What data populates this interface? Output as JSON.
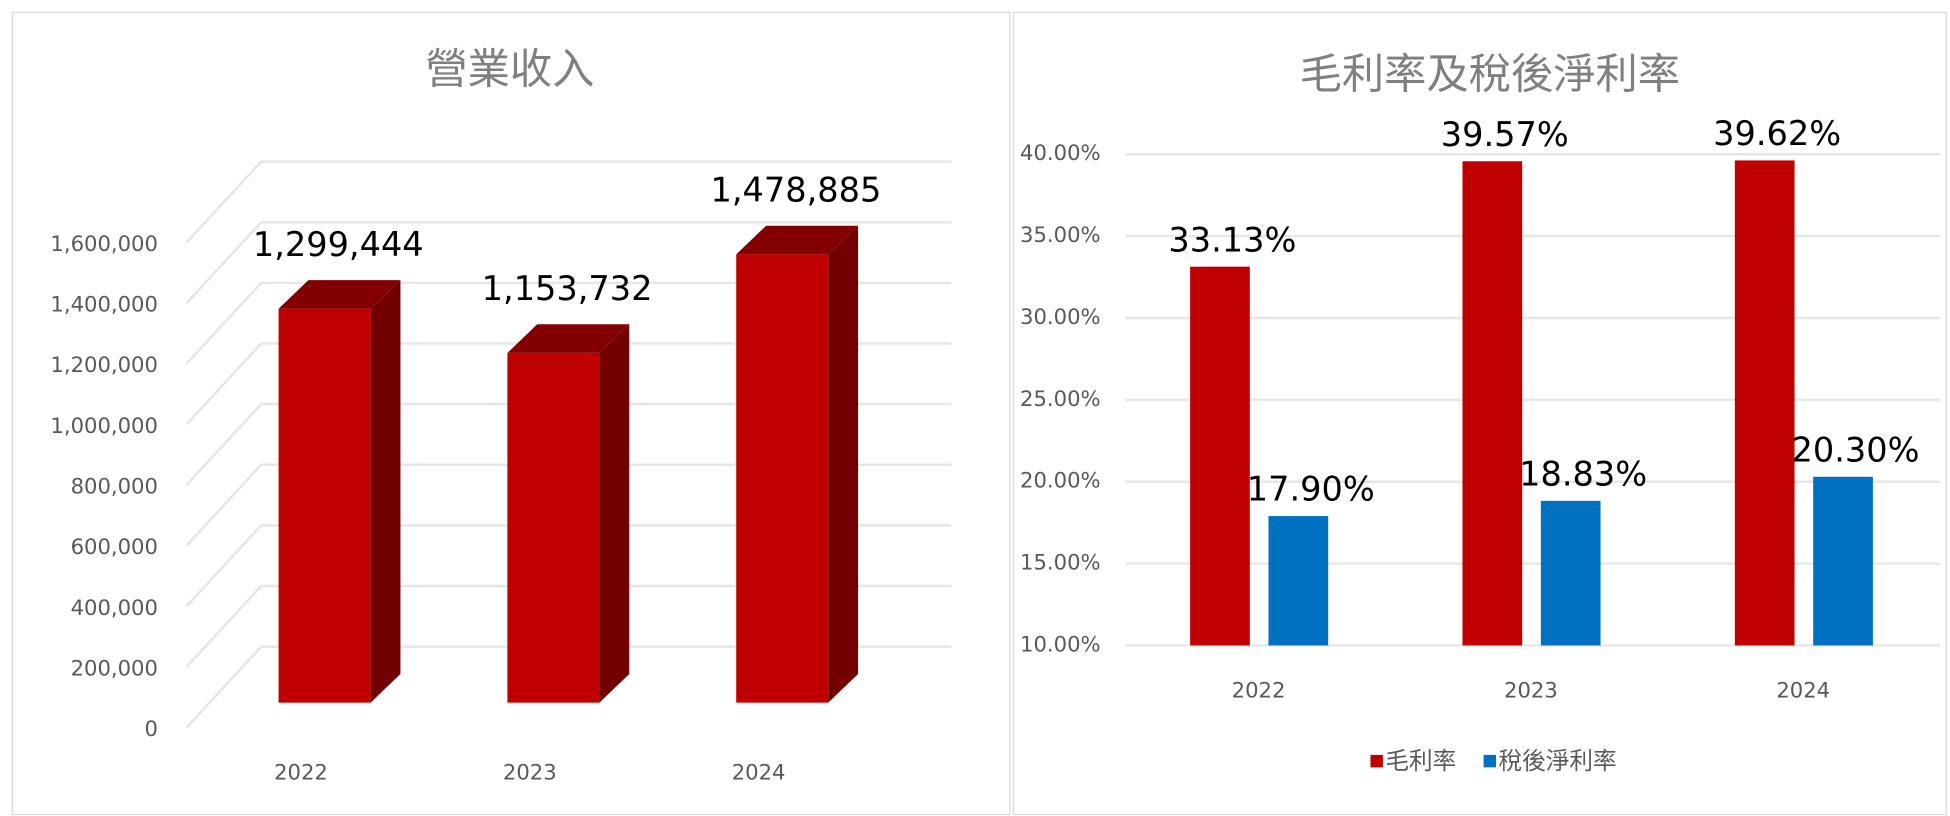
{
  "chart_data": [
    {
      "type": "bar",
      "3d": true,
      "title": "營業收入",
      "categories": [
        "2022",
        "2023",
        "2024"
      ],
      "values": [
        1299444,
        1153732,
        1478885
      ],
      "value_labels": [
        "1,299,444",
        "1,153,732",
        "1,478,885"
      ],
      "color": "#c00000",
      "ylim": [
        0,
        1600000
      ],
      "yticks": [
        0,
        {
          "value": 200000,
          "label": "200,000"
        },
        {
          "value": 400000,
          "label": "400,000"
        },
        {
          "value": 600000,
          "label": "600,000"
        },
        {
          "value": 800000,
          "label": "800,000"
        },
        {
          "value": 1000000,
          "label": "1,000,000"
        },
        {
          "value": 1200000,
          "label": "1,200,000"
        },
        {
          "value": 1400000,
          "label": "1,400,000"
        },
        {
          "value": 1600000,
          "label": "1,600,000"
        }
      ],
      "grid": true
    },
    {
      "type": "bar",
      "title": "毛利率及稅後淨利率",
      "categories": [
        "2022",
        "2023",
        "2024"
      ],
      "series": [
        {
          "name": "毛利率",
          "color": "#c00000",
          "values": [
            33.13,
            39.57,
            39.62
          ],
          "value_labels": [
            "33.13%",
            "39.57%",
            "39.62%"
          ]
        },
        {
          "name": "稅後淨利率",
          "color": "#0070c0",
          "values": [
            17.9,
            18.83,
            20.3
          ],
          "value_labels": [
            "17.90%",
            "18.83%",
            "20.30%"
          ]
        }
      ],
      "ylim": [
        10,
        40
      ],
      "yticks": [
        {
          "value": 10,
          "label": "10.00%"
        },
        {
          "value": 15,
          "label": "15.00%"
        },
        {
          "value": 20,
          "label": "20.00%"
        },
        {
          "value": 25,
          "label": "25.00%"
        },
        {
          "value": 30,
          "label": "30.00%"
        },
        {
          "value": 35,
          "label": "35.00%"
        },
        {
          "value": 40,
          "label": "40.00%"
        }
      ],
      "grid": true,
      "legend": "bottom"
    }
  ]
}
